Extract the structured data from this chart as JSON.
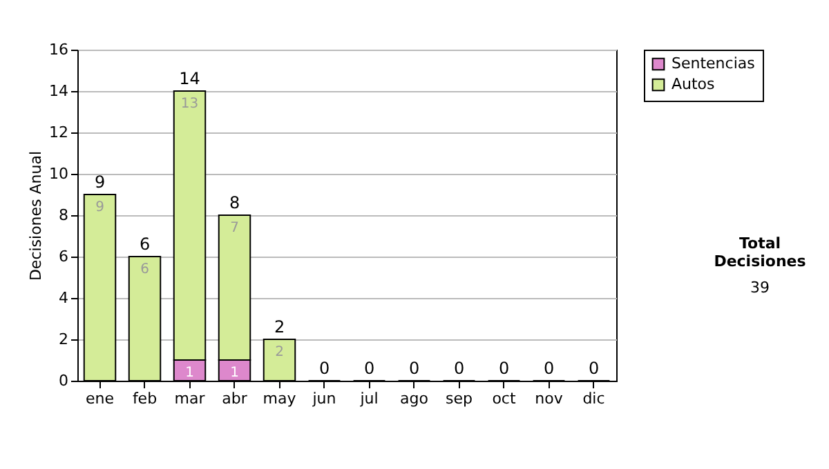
{
  "chart_data": {
    "type": "bar",
    "stacked": true,
    "ylabel": "Decisiones Anual",
    "categories": [
      "ene",
      "feb",
      "mar",
      "abr",
      "may",
      "jun",
      "jul",
      "ago",
      "sep",
      "oct",
      "nov",
      "dic"
    ],
    "series": [
      {
        "name": "Sentencias",
        "color": "#dd88cc",
        "values": [
          0,
          0,
          1,
          1,
          0,
          0,
          0,
          0,
          0,
          0,
          0,
          0
        ],
        "value_labels": [
          null,
          null,
          "1",
          "1",
          null,
          null,
          null,
          null,
          null,
          null,
          null,
          null
        ]
      },
      {
        "name": "Autos",
        "color": "#d4ec98",
        "values": [
          9,
          6,
          13,
          7,
          2,
          0,
          0,
          0,
          0,
          0,
          0,
          0
        ],
        "value_labels": [
          "9",
          "6",
          "13",
          "7",
          "2",
          null,
          null,
          null,
          null,
          null,
          null,
          null
        ]
      }
    ],
    "totals": [
      "9",
      "6",
      "14",
      "8",
      "2",
      "0",
      "0",
      "0",
      "0",
      "0",
      "0",
      "0"
    ],
    "ylim": [
      0,
      16
    ],
    "yticks": [
      0,
      2,
      4,
      6,
      8,
      10,
      12,
      14,
      16
    ],
    "grid": "y",
    "legend": "right",
    "annotations": [
      "Total Decisiones",
      "39"
    ]
  }
}
